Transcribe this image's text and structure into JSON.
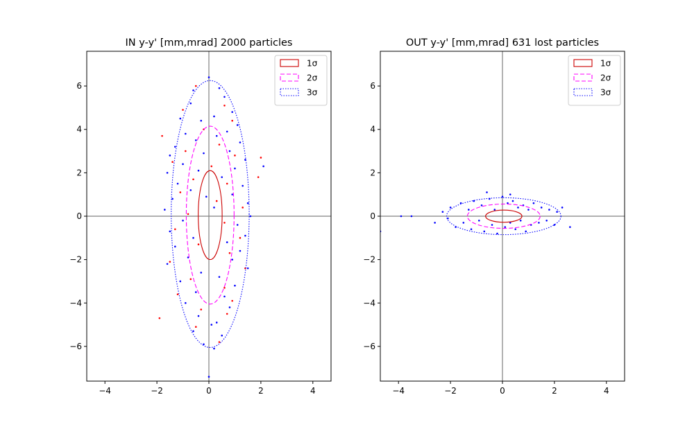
{
  "figure": {
    "background": "#ffffff"
  },
  "chart_data": [
    {
      "type": "scatter",
      "title": "IN y-y' [mm,mrad] 2000 particles",
      "xlim": [
        -4.7,
        4.7
      ],
      "ylim": [
        -7.6,
        7.6
      ],
      "xticks": [
        -4,
        -2,
        0,
        2,
        4
      ],
      "yticks": [
        -6,
        -4,
        -2,
        0,
        2,
        4,
        6
      ],
      "xtick_labels": [
        "−4",
        "−2",
        "0",
        "2",
        "4"
      ],
      "ytick_labels": [
        "−6",
        "−4",
        "−2",
        "0",
        "2",
        "4",
        "6"
      ],
      "axis_lines": {
        "x": 0,
        "y": 0,
        "color": "#808080"
      },
      "legend": {
        "placement": "top-right",
        "entries": [
          {
            "label": "1σ",
            "color": "#cc0000",
            "style": "solid"
          },
          {
            "label": "2σ",
            "color": "#ff00ff",
            "style": "dashed"
          },
          {
            "label": "3σ",
            "color": "#0000ff",
            "style": "dotted"
          }
        ]
      },
      "ellipses": [
        {
          "sigma": 1,
          "center": [
            0.05,
            0.05
          ],
          "rx": 0.46,
          "ry": 2.05,
          "color": "#cc0000",
          "style": "solid"
        },
        {
          "sigma": 2,
          "center": [
            0.05,
            0.05
          ],
          "rx": 0.92,
          "ry": 4.1,
          "color": "#ff00ff",
          "style": "dashed"
        },
        {
          "sigma": 3,
          "center": [
            0.05,
            0.1
          ],
          "rx": 1.5,
          "ry": 6.15,
          "color": "#0000ff",
          "style": "dotted"
        }
      ],
      "series": [
        {
          "color": "#0000ff",
          "values": [
            [
              0.0,
              6.4
            ],
            [
              -0.6,
              5.8
            ],
            [
              0.4,
              5.9
            ],
            [
              -0.7,
              5.2
            ],
            [
              0.6,
              5.5
            ],
            [
              0.9,
              4.8
            ],
            [
              -1.1,
              4.5
            ],
            [
              1.1,
              4.2
            ],
            [
              -0.3,
              4.4
            ],
            [
              0.2,
              4.6
            ],
            [
              -0.9,
              3.8
            ],
            [
              0.7,
              3.9
            ],
            [
              -1.3,
              3.2
            ],
            [
              1.2,
              3.4
            ],
            [
              -0.5,
              3.5
            ],
            [
              0.3,
              3.7
            ],
            [
              -1.5,
              2.8
            ],
            [
              1.4,
              2.6
            ],
            [
              -0.2,
              2.9
            ],
            [
              0.8,
              3.0
            ],
            [
              -1.0,
              2.4
            ],
            [
              1.0,
              2.2
            ],
            [
              -1.6,
              2.0
            ],
            [
              2.1,
              2.3
            ],
            [
              -0.4,
              2.1
            ],
            [
              0.5,
              1.8
            ],
            [
              -1.2,
              1.5
            ],
            [
              1.3,
              1.4
            ],
            [
              -0.7,
              1.2
            ],
            [
              0.9,
              1.0
            ],
            [
              -1.4,
              0.8
            ],
            [
              1.5,
              0.6
            ],
            [
              -0.1,
              0.9
            ],
            [
              0.2,
              0.4
            ],
            [
              -1.7,
              0.3
            ],
            [
              1.6,
              0.0
            ],
            [
              -1.0,
              -0.2
            ],
            [
              1.1,
              -0.4
            ],
            [
              -1.5,
              -0.7
            ],
            [
              1.4,
              -0.9
            ],
            [
              -0.6,
              -1.0
            ],
            [
              0.7,
              -1.2
            ],
            [
              -1.3,
              -1.4
            ],
            [
              1.2,
              -1.6
            ],
            [
              -0.8,
              -1.9
            ],
            [
              0.9,
              -2.0
            ],
            [
              -1.6,
              -2.2
            ],
            [
              1.5,
              -2.4
            ],
            [
              -0.3,
              -2.6
            ],
            [
              0.4,
              -2.8
            ],
            [
              -1.1,
              -3.0
            ],
            [
              1.0,
              -3.2
            ],
            [
              -0.5,
              -3.5
            ],
            [
              0.6,
              -3.7
            ],
            [
              -0.9,
              -4.0
            ],
            [
              0.8,
              -4.2
            ],
            [
              -0.4,
              -4.6
            ],
            [
              0.3,
              -4.9
            ],
            [
              -0.6,
              -5.3
            ],
            [
              0.5,
              -5.5
            ],
            [
              -0.2,
              -5.9
            ],
            [
              0.2,
              -6.1
            ],
            [
              0.0,
              -7.4
            ],
            [
              0.1,
              -5.0
            ]
          ]
        },
        {
          "color": "#ff0000",
          "values": [
            [
              -0.5,
              6.0
            ],
            [
              0.6,
              5.1
            ],
            [
              -1.0,
              4.9
            ],
            [
              0.9,
              4.4
            ],
            [
              -0.2,
              4.0
            ],
            [
              -1.8,
              3.7
            ],
            [
              0.4,
              3.3
            ],
            [
              -0.9,
              3.0
            ],
            [
              1.0,
              2.8
            ],
            [
              2.0,
              2.7
            ],
            [
              -1.4,
              2.5
            ],
            [
              0.1,
              2.3
            ],
            [
              1.9,
              1.8
            ],
            [
              -0.6,
              1.7
            ],
            [
              0.7,
              1.5
            ],
            [
              -1.1,
              1.1
            ],
            [
              0.3,
              0.7
            ],
            [
              1.3,
              0.4
            ],
            [
              -0.8,
              0.1
            ],
            [
              0.6,
              -0.3
            ],
            [
              -1.3,
              -0.6
            ],
            [
              1.2,
              -1.0
            ],
            [
              -0.4,
              -1.3
            ],
            [
              0.8,
              -1.7
            ],
            [
              -1.5,
              -2.1
            ],
            [
              1.4,
              -2.4
            ],
            [
              -0.7,
              -2.9
            ],
            [
              0.6,
              -3.3
            ],
            [
              -1.2,
              -3.6
            ],
            [
              0.9,
              -3.9
            ],
            [
              -0.3,
              -4.3
            ],
            [
              -1.9,
              -4.7
            ],
            [
              0.7,
              -4.5
            ],
            [
              -0.5,
              -5.1
            ],
            [
              0.4,
              -5.8
            ]
          ]
        }
      ]
    },
    {
      "type": "scatter",
      "title": "OUT y-y' [mm,mrad] 631 lost particles",
      "xlim": [
        -4.7,
        4.7
      ],
      "ylim": [
        -7.6,
        7.6
      ],
      "xticks": [
        -4,
        -2,
        0,
        2,
        4
      ],
      "yticks": [
        -6,
        -4,
        -2,
        0,
        2,
        4,
        6
      ],
      "xtick_labels": [
        "−4",
        "−2",
        "0",
        "2",
        "4"
      ],
      "ytick_labels": [
        "−6",
        "−4",
        "−2",
        "0",
        "2",
        "4",
        "6"
      ],
      "axis_lines": {
        "x": 0,
        "y": 0,
        "color": "#808080"
      },
      "legend": {
        "placement": "top-right",
        "entries": [
          {
            "label": "1σ",
            "color": "#cc0000",
            "style": "solid"
          },
          {
            "label": "2σ",
            "color": "#ff00ff",
            "style": "dashed"
          },
          {
            "label": "3σ",
            "color": "#0000ff",
            "style": "dotted"
          }
        ]
      },
      "ellipses": [
        {
          "sigma": 1,
          "center": [
            0.05,
            0.0
          ],
          "rx": 0.7,
          "ry": 0.28,
          "color": "#cc0000",
          "style": "solid"
        },
        {
          "sigma": 2,
          "center": [
            0.05,
            0.0
          ],
          "rx": 1.4,
          "ry": 0.56,
          "color": "#ff00ff",
          "style": "dashed"
        },
        {
          "sigma": 3,
          "center": [
            0.05,
            0.0
          ],
          "rx": 2.2,
          "ry": 0.85,
          "color": "#0000ff",
          "style": "dotted"
        }
      ],
      "series": [
        {
          "color": "#0000ff",
          "values": [
            [
              -4.7,
              -0.7
            ],
            [
              -3.9,
              0.0
            ],
            [
              -3.5,
              0.0
            ],
            [
              -2.6,
              -0.3
            ],
            [
              -2.3,
              0.2
            ],
            [
              -2.1,
              -0.1
            ],
            [
              -2.0,
              0.4
            ],
            [
              -1.8,
              -0.5
            ],
            [
              -1.6,
              0.6
            ],
            [
              -1.5,
              -0.3
            ],
            [
              -1.3,
              0.3
            ],
            [
              -1.2,
              -0.6
            ],
            [
              -1.1,
              0.7
            ],
            [
              -0.9,
              -0.2
            ],
            [
              -0.8,
              0.5
            ],
            [
              -0.7,
              -0.7
            ],
            [
              -0.5,
              0.8
            ],
            [
              -0.4,
              -0.4
            ],
            [
              -0.3,
              0.3
            ],
            [
              -0.2,
              -0.8
            ],
            [
              0.0,
              0.9
            ],
            [
              0.1,
              -0.5
            ],
            [
              0.2,
              0.6
            ],
            [
              0.3,
              -0.3
            ],
            [
              0.4,
              0.7
            ],
            [
              0.5,
              -0.6
            ],
            [
              0.6,
              0.4
            ],
            [
              0.7,
              -0.2
            ],
            [
              0.8,
              0.5
            ],
            [
              0.9,
              -0.7
            ],
            [
              1.0,
              0.3
            ],
            [
              1.1,
              -0.4
            ],
            [
              1.2,
              0.6
            ],
            [
              1.4,
              -0.3
            ],
            [
              1.5,
              0.4
            ],
            [
              1.7,
              -0.2
            ],
            [
              1.8,
              0.3
            ],
            [
              2.0,
              -0.4
            ],
            [
              2.1,
              0.2
            ],
            [
              2.3,
              0.4
            ],
            [
              2.6,
              -0.5
            ],
            [
              -0.6,
              1.1
            ],
            [
              0.3,
              1.0
            ]
          ]
        }
      ]
    }
  ]
}
